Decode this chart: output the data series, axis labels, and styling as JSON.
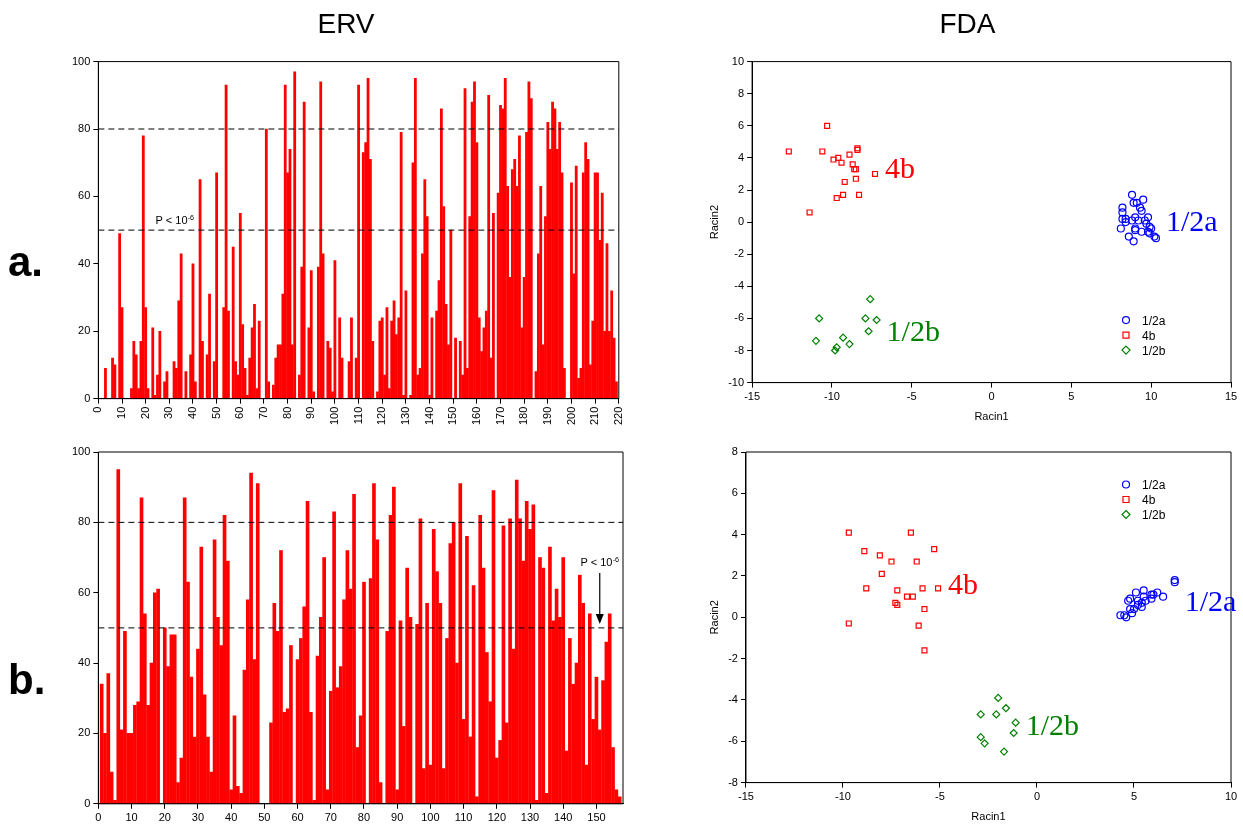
{
  "chart_data": [
    {
      "type": "bar",
      "title": "ERV",
      "color": "#ff0000",
      "xlim": [
        0,
        220
      ],
      "xticks": [
        0,
        10,
        20,
        30,
        40,
        50,
        60,
        70,
        80,
        90,
        100,
        110,
        120,
        130,
        140,
        150,
        160,
        170,
        180,
        190,
        200,
        210,
        220
      ],
      "ylim": [
        0,
        100
      ],
      "yticks": [
        0,
        20,
        40,
        60,
        80,
        100
      ],
      "x": [
        3,
        6,
        7,
        9,
        10,
        14,
        15,
        16,
        17,
        18,
        19,
        20,
        21,
        23,
        24,
        25,
        26,
        28,
        29,
        32,
        33,
        34,
        35,
        37,
        39,
        40,
        41,
        43,
        44,
        46,
        47,
        49,
        50,
        53,
        54,
        55,
        57,
        58,
        59,
        60,
        61,
        62,
        63,
        64,
        65,
        66,
        67,
        68,
        71,
        72,
        74,
        75,
        76,
        77,
        78,
        79,
        80,
        81,
        82,
        83,
        85,
        86,
        87,
        89,
        90,
        91,
        93,
        94,
        95,
        97,
        98,
        99,
        100,
        102,
        103,
        106,
        107,
        109,
        110,
        112,
        113,
        114,
        115,
        116,
        118,
        119,
        120,
        121,
        122,
        123,
        124,
        125,
        126,
        127,
        128,
        129,
        130,
        132,
        133,
        134,
        135,
        136,
        137,
        138,
        139,
        140,
        141,
        143,
        144,
        145,
        146,
        147,
        148,
        149,
        151,
        153,
        154,
        155,
        156,
        157,
        158,
        159,
        160,
        161,
        162,
        163,
        164,
        165,
        166,
        167,
        169,
        170,
        171,
        172,
        173,
        174,
        175,
        176,
        177,
        178,
        179,
        180,
        181,
        182,
        183,
        185,
        186,
        187,
        188,
        189,
        190,
        191,
        192,
        193,
        194,
        195,
        196,
        197,
        200,
        201,
        202,
        203,
        204,
        205,
        206,
        207,
        208,
        209,
        210,
        211,
        212,
        213,
        214,
        215,
        216,
        217,
        218,
        219
      ],
      "values": [
        9,
        12,
        10,
        49,
        27,
        3,
        17,
        13,
        3,
        17,
        78,
        27,
        3,
        21,
        1,
        7,
        20,
        5,
        8,
        11,
        9,
        29,
        43,
        8,
        13,
        40,
        5,
        65,
        17,
        13,
        31,
        11,
        67,
        27,
        93,
        26,
        45,
        11,
        7,
        55,
        22,
        9,
        1,
        12,
        21,
        28,
        3,
        23,
        80,
        5,
        4,
        12,
        16,
        16,
        31,
        93,
        67,
        74,
        16,
        97,
        7,
        39,
        88,
        21,
        38,
        2,
        39,
        94,
        43,
        17,
        15,
        2,
        41,
        24,
        12,
        11,
        24,
        12,
        93,
        73,
        76,
        95,
        71,
        17,
        2,
        23,
        24,
        7,
        27,
        3,
        23,
        29,
        19,
        24,
        79,
        1,
        32,
        1,
        70,
        95,
        7,
        9,
        43,
        65,
        54,
        1,
        24,
        26,
        35,
        86,
        57,
        28,
        16,
        50,
        18,
        17,
        7,
        92,
        9,
        54,
        88,
        94,
        76,
        24,
        14,
        21,
        26,
        90,
        12,
        55,
        61,
        87,
        86,
        95,
        63,
        36,
        68,
        71,
        63,
        78,
        21,
        36,
        79,
        94,
        89,
        8,
        43,
        63,
        16,
        54,
        82,
        74,
        88,
        86,
        74,
        82,
        67,
        9,
        64,
        37,
        69,
        6,
        9,
        67,
        76,
        71,
        10,
        23,
        67,
        67,
        47,
        61,
        20,
        46,
        20,
        32,
        18,
        5
      ],
      "ref_lines": [
        {
          "axis": "y",
          "value": 80,
          "line_style": "dashed"
        },
        {
          "axis": "y",
          "value": 50,
          "label": "P < 10$^{-6}$",
          "line_style": "dashed"
        }
      ],
      "annotations": [
        "a."
      ]
    },
    {
      "type": "scatter",
      "title": "FDA",
      "xlabel": "Racin1",
      "ylabel": "Racin2",
      "xlim": [
        -15,
        15
      ],
      "xticks": [
        -15,
        -10,
        -5,
        0,
        5,
        10,
        15
      ],
      "ylim": [
        -10,
        10
      ],
      "yticks": [
        -10,
        -8,
        -6,
        -4,
        -2,
        0,
        2,
        4,
        6,
        8,
        10
      ],
      "legend": "bottom right",
      "series": [
        {
          "name": "1/2a",
          "color": "#0000ff",
          "marker": "circle",
          "x": [
            8.8,
            9.5,
            8.9,
            9.1,
            9.3,
            9.4,
            8.2,
            8.2,
            9.8,
            8.2,
            8.4,
            8.4,
            8.8,
            9.0,
            9.2,
            9.6,
            9.7,
            9.9,
            10.0,
            9.8,
            9.9,
            9.4,
            9.0,
            9.0,
            8.1,
            8.6,
            8.9,
            10.2,
            10.3
          ],
          "values": [
            1.7,
            1.4,
            1.2,
            1.2,
            0.9,
            0.7,
            0.9,
            0.6,
            0.3,
            0.2,
            0.2,
            0.0,
            0.1,
            0.3,
            0.1,
            0.1,
            -0.1,
            -0.3,
            -0.4,
            -0.6,
            -0.7,
            -0.6,
            -0.4,
            -0.5,
            -0.4,
            -0.9,
            -1.2,
            -0.9,
            -1.0
          ]
        },
        {
          "name": "4b",
          "color": "#ff0000",
          "marker": "square",
          "x": [
            -12.7,
            -10.3,
            -10.6,
            -9.9,
            -9.6,
            -9.4,
            -8.9,
            -8.4,
            -8.4,
            -8.7,
            -8.6,
            -8.5,
            -8.5,
            -7.3,
            -9.2,
            -9.3,
            -9.7,
            -8.3,
            -11.4
          ],
          "values": [
            4.4,
            6.0,
            4.4,
            3.9,
            4.0,
            3.7,
            4.2,
            4.6,
            4.5,
            3.6,
            3.3,
            3.3,
            2.7,
            3.0,
            2.5,
            1.7,
            1.5,
            1.7,
            0.6
          ]
        },
        {
          "name": "1/2b",
          "color": "#008000",
          "marker": "diamond",
          "x": [
            -7.6,
            -10.8,
            -7.9,
            -7.2,
            -7.7,
            -11.0,
            -9.3,
            -9.7,
            -9.8,
            -8.9
          ],
          "values": [
            -4.8,
            -6.0,
            -6.0,
            -6.1,
            -6.8,
            -7.4,
            -7.2,
            -7.8,
            -8.0,
            -7.6
          ]
        }
      ],
      "annotations": [
        "1/2a",
        "4b",
        "1/2b"
      ]
    },
    {
      "type": "bar",
      "color": "#ff0000",
      "xlim": [
        0,
        158
      ],
      "xticks": [
        0,
        10,
        20,
        30,
        40,
        50,
        60,
        70,
        80,
        90,
        100,
        110,
        120,
        130,
        140,
        150
      ],
      "ylim": [
        0,
        100
      ],
      "yticks": [
        0,
        20,
        40,
        60,
        80,
        100
      ],
      "x": [
        1,
        2,
        3,
        4,
        5,
        6,
        7,
        8,
        9,
        10,
        11,
        12,
        13,
        14,
        15,
        16,
        17,
        18,
        20,
        21,
        22,
        23,
        24,
        25,
        26,
        27,
        28,
        29,
        30,
        31,
        32,
        33,
        34,
        35,
        36,
        37,
        38,
        39,
        40,
        41,
        42,
        43,
        44,
        45,
        46,
        47,
        48,
        52,
        53,
        54,
        55,
        56,
        57,
        58,
        60,
        61,
        62,
        63,
        64,
        65,
        66,
        67,
        68,
        69,
        70,
        71,
        72,
        73,
        74,
        75,
        76,
        77,
        78,
        79,
        80,
        82,
        83,
        84,
        85,
        87,
        88,
        89,
        90,
        91,
        92,
        93,
        94,
        96,
        97,
        98,
        99,
        100,
        101,
        102,
        103,
        104,
        105,
        106,
        107,
        108,
        109,
        110,
        111,
        112,
        113,
        114,
        115,
        116,
        117,
        118,
        119,
        120,
        121,
        122,
        123,
        124,
        125,
        126,
        127,
        128,
        129,
        130,
        131,
        132,
        133,
        134,
        135,
        136,
        137,
        138,
        139,
        140,
        141,
        142,
        143,
        144,
        145,
        146,
        147,
        148,
        149,
        150,
        151,
        152,
        153,
        154,
        155,
        156,
        157
      ],
      "values": [
        34,
        20,
        37,
        9,
        1,
        95,
        21,
        49,
        20,
        20,
        28,
        29,
        87,
        54,
        28,
        40,
        60,
        61,
        50,
        39,
        48,
        48,
        6,
        13,
        87,
        63,
        36,
        19,
        44,
        73,
        31,
        19,
        9,
        75,
        53,
        45,
        82,
        69,
        4,
        25,
        5,
        3,
        38,
        58,
        94,
        41,
        91,
        23,
        57,
        49,
        72,
        26,
        27,
        45,
        41,
        47,
        56,
        86,
        26,
        1,
        42,
        53,
        70,
        4,
        32,
        83,
        33,
        39,
        58,
        72,
        61,
        88,
        16,
        25,
        63,
        64,
        91,
        75,
        6,
        49,
        82,
        90,
        4,
        52,
        22,
        67,
        53,
        51,
        81,
        10,
        57,
        11,
        78,
        66,
        57,
        10,
        47,
        74,
        80,
        40,
        91,
        24,
        76,
        19,
        62,
        2,
        82,
        67,
        43,
        29,
        89,
        13,
        18,
        79,
        23,
        81,
        44,
        92,
        81,
        69,
        86,
        78,
        85,
        1,
        70,
        67,
        3,
        73,
        52,
        61,
        53,
        70,
        15,
        47,
        34,
        40,
        65,
        57,
        11,
        54,
        24,
        36,
        21,
        35,
        46,
        54,
        16,
        4,
        2
      ],
      "ref_lines": [
        {
          "axis": "y",
          "value": 80,
          "line_style": "dashed"
        },
        {
          "axis": "y",
          "value": 50,
          "line_style": "dashed"
        }
      ],
      "annotations": [
        "b.",
        {
          "text": "P < 10$^{-6}$",
          "x": 151,
          "y": 50
        }
      ]
    },
    {
      "type": "scatter",
      "xlabel": "Racin1",
      "ylabel": "Racin2",
      "xlim": [
        -15,
        10
      ],
      "xticks": [
        -15,
        -10,
        -5,
        0,
        5,
        10
      ],
      "ylim": [
        -8,
        8
      ],
      "yticks": [
        -8,
        -6,
        -4,
        -2,
        0,
        2,
        4,
        6,
        8
      ],
      "legend": "top right",
      "series": [
        {
          "name": "1/2a",
          "color": "#0000ff",
          "marker": "circle",
          "x": [
            7.1,
            7.1,
            6.5,
            6.2,
            6.0,
            5.9,
            5.9,
            5.5,
            5.5,
            5.6,
            5.4,
            5.4,
            5.1,
            5.2,
            5.2,
            4.8,
            4.7,
            5.0,
            4.8,
            4.9,
            4.3,
            4.5,
            4.6
          ],
          "values": [
            1.8,
            1.7,
            1.0,
            1.2,
            1.1,
            1.1,
            0.9,
            1.3,
            1.0,
            0.8,
            0.7,
            0.5,
            1.2,
            0.8,
            0.6,
            0.9,
            0.8,
            0.4,
            0.4,
            0.2,
            0.1,
            0.1,
            0.0
          ]
        },
        {
          "name": "4b",
          "color": "#ff0000",
          "marker": "square",
          "x": [
            -9.7,
            -6.5,
            -8.9,
            -5.3,
            -8.1,
            -7.5,
            -6.2,
            -8.0,
            -8.8,
            -7.2,
            -5.9,
            -5.1,
            -6.7,
            -6.4,
            -7.3,
            -7.2,
            -5.8,
            -6.1,
            -5.8,
            -9.7
          ],
          "values": [
            4.1,
            4.1,
            3.2,
            3.3,
            3.0,
            2.7,
            2.7,
            2.1,
            1.4,
            1.3,
            1.4,
            1.4,
            1.0,
            1.0,
            0.7,
            0.6,
            0.4,
            -0.4,
            -1.6,
            -0.3
          ]
        },
        {
          "name": "1/2b",
          "color": "#008000",
          "marker": "diamond",
          "x": [
            -2.0,
            -1.6,
            -2.9,
            -2.1,
            -1.1,
            -1.2,
            -2.9,
            -2.7,
            -1.7
          ],
          "values": [
            -3.9,
            -4.4,
            -4.7,
            -4.7,
            -5.1,
            -5.6,
            -5.8,
            -6.1,
            -6.5
          ]
        }
      ],
      "annotations": [
        "1/2a",
        "4b",
        "1/2b"
      ]
    }
  ]
}
